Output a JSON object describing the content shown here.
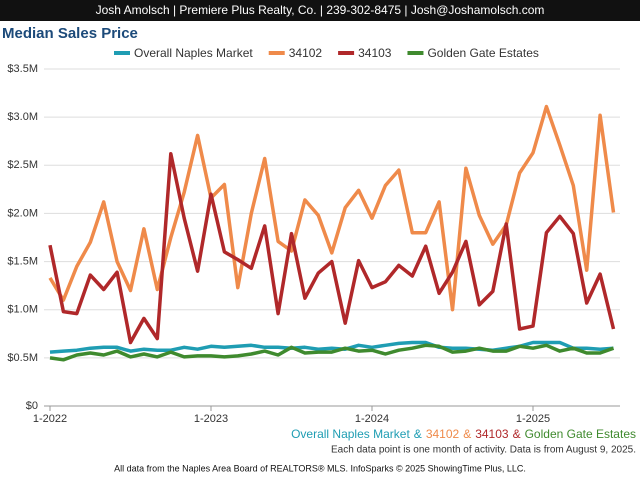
{
  "header": "Josh Amolsch | Premiere Plus Realty, Co. | 239-302-8475 | Josh@Joshamolsch.com",
  "chart_data": {
    "type": "line",
    "title": "Median Sales Price",
    "categories": [
      "1-2022",
      null,
      null,
      null,
      null,
      null,
      null,
      null,
      null,
      null,
      null,
      null,
      "1-2023",
      null,
      null,
      null,
      null,
      null,
      null,
      null,
      null,
      null,
      null,
      null,
      "1-2024",
      null,
      null,
      null,
      null,
      null,
      null,
      null,
      null,
      null,
      null,
      null,
      "1-2025",
      null,
      null,
      null,
      null,
      null,
      null
    ],
    "series": [
      {
        "name": "Overall Naples Market",
        "color": "#1f9db3",
        "values": [
          0.56,
          0.57,
          0.58,
          0.6,
          0.61,
          0.61,
          0.57,
          0.59,
          0.58,
          0.58,
          0.61,
          0.59,
          0.62,
          0.61,
          0.62,
          0.63,
          0.61,
          0.61,
          0.6,
          0.61,
          0.59,
          0.6,
          0.59,
          0.63,
          0.61,
          0.63,
          0.65,
          0.66,
          0.66,
          0.61,
          0.6,
          0.6,
          0.59,
          0.58,
          0.6,
          0.62,
          0.66,
          0.66,
          0.66,
          0.6,
          0.6,
          0.59,
          0.6
        ]
      },
      {
        "name": "34102",
        "color": "#ef8a4a",
        "values": [
          1.33,
          1.1,
          1.45,
          1.7,
          2.12,
          1.5,
          1.2,
          1.84,
          1.21,
          1.75,
          2.22,
          2.81,
          2.16,
          2.3,
          1.23,
          2.0,
          2.57,
          1.71,
          1.61,
          2.14,
          1.98,
          1.59,
          2.06,
          2.24,
          1.95,
          2.29,
          2.45,
          1.8,
          1.8,
          2.12,
          1.0,
          2.47,
          1.98,
          1.68,
          1.88,
          2.42,
          2.63,
          3.11,
          2.71,
          2.29,
          1.41,
          3.02,
          2.01
        ]
      },
      {
        "name": "34103",
        "color": "#b0282a",
        "values": [
          1.67,
          0.98,
          0.96,
          1.36,
          1.21,
          1.39,
          0.66,
          0.91,
          0.7,
          2.62,
          1.95,
          1.4,
          2.2,
          1.6,
          1.52,
          1.43,
          1.87,
          0.96,
          1.79,
          1.12,
          1.38,
          1.5,
          0.86,
          1.51,
          1.23,
          1.29,
          1.46,
          1.35,
          1.66,
          1.17,
          1.39,
          1.71,
          1.05,
          1.19,
          1.89,
          0.8,
          0.83,
          1.8,
          1.97,
          1.79,
          1.07,
          1.37,
          0.8
        ]
      },
      {
        "name": "Golden Gate Estates",
        "color": "#3f8a2e",
        "values": [
          0.5,
          0.48,
          0.53,
          0.55,
          0.53,
          0.57,
          0.51,
          0.54,
          0.51,
          0.56,
          0.51,
          0.52,
          0.52,
          0.51,
          0.52,
          0.54,
          0.57,
          0.53,
          0.61,
          0.55,
          0.56,
          0.56,
          0.6,
          0.57,
          0.58,
          0.54,
          0.58,
          0.6,
          0.63,
          0.62,
          0.56,
          0.57,
          0.6,
          0.57,
          0.57,
          0.62,
          0.6,
          0.63,
          0.57,
          0.6,
          0.55,
          0.55,
          0.6
        ]
      }
    ],
    "ylim": [
      0,
      3.5
    ],
    "yticks": [
      {
        "value": 0,
        "label": "$0"
      },
      {
        "value": 0.5,
        "label": "$0.5M"
      },
      {
        "value": 1,
        "label": "$1.0M"
      },
      {
        "value": 1.5,
        "label": "$1.5M"
      },
      {
        "value": 2,
        "label": "$2.0M"
      },
      {
        "value": 2.5,
        "label": "$2.5M"
      },
      {
        "value": 3,
        "label": "$3.0M"
      },
      {
        "value": 3.5,
        "label": "$3.5M"
      }
    ],
    "grid": true,
    "legend": "top",
    "footer_separator": "&",
    "note": "Each data point is one month of activity. Data is from August 9, 2025.",
    "source": "All data from the Naples Area Board of REALTORS® MLS. InfoSparks © 2025 ShowingTime Plus, LLC."
  }
}
